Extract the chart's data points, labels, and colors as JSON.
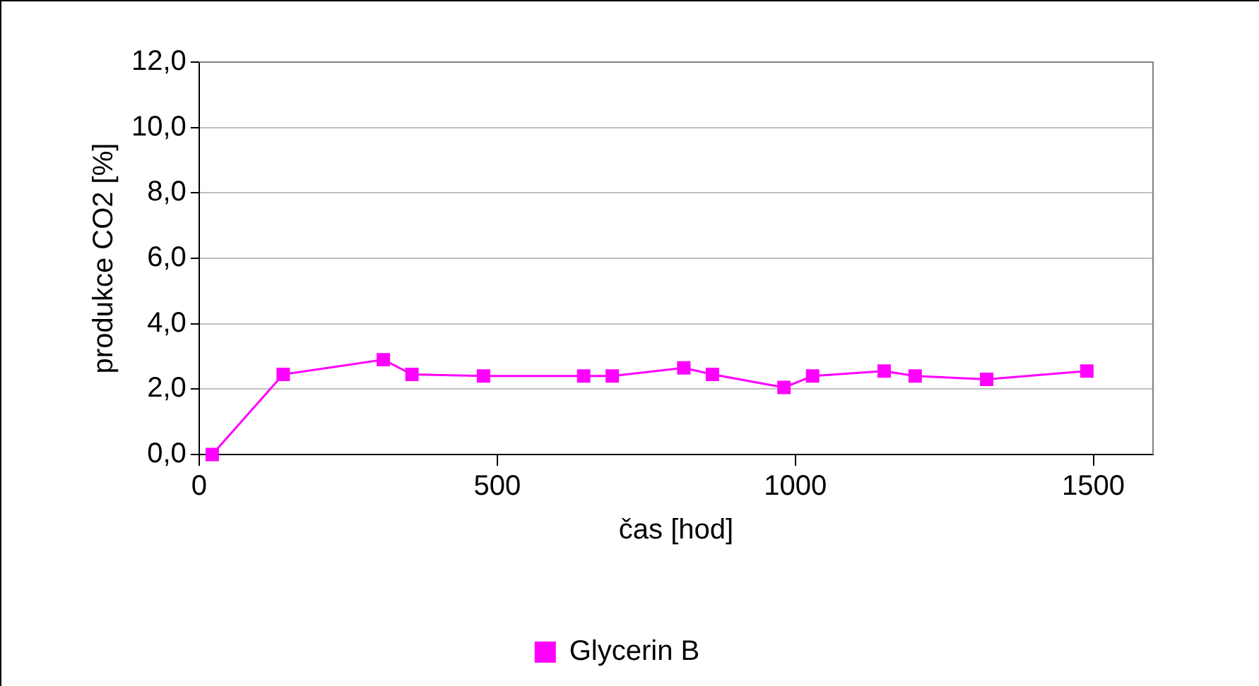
{
  "chart_data": {
    "type": "line",
    "xlabel": "čas [hod]",
    "ylabel": "produkce CO2 [%]",
    "xlim": [
      0,
      1600
    ],
    "xticks": [
      0,
      500,
      1000,
      1500
    ],
    "ylim": [
      0,
      12
    ],
    "yticks": [
      {
        "value": 0,
        "label": "0,0"
      },
      {
        "value": 2,
        "label": "2,0"
      },
      {
        "value": 4,
        "label": "4,0"
      },
      {
        "value": 6,
        "label": "6,0"
      },
      {
        "value": 8,
        "label": "8,0"
      },
      {
        "value": 10,
        "label": "10,0"
      },
      {
        "value": 12,
        "label": "12,0"
      }
    ],
    "grid": "y",
    "legend": "bottom",
    "series": [
      {
        "name": "Glycerin B",
        "color": "#ff00ff",
        "marker": "square",
        "x": [
          22,
          141,
          309,
          357,
          477,
          645,
          693,
          813,
          861,
          981,
          1029,
          1149,
          1201,
          1321,
          1489
        ],
        "values": [
          0,
          2.45,
          2.9,
          2.45,
          2.4,
          2.4,
          2.4,
          2.65,
          2.45,
          2.05,
          2.4,
          2.55,
          2.4,
          2.3,
          2.55
        ]
      }
    ]
  }
}
